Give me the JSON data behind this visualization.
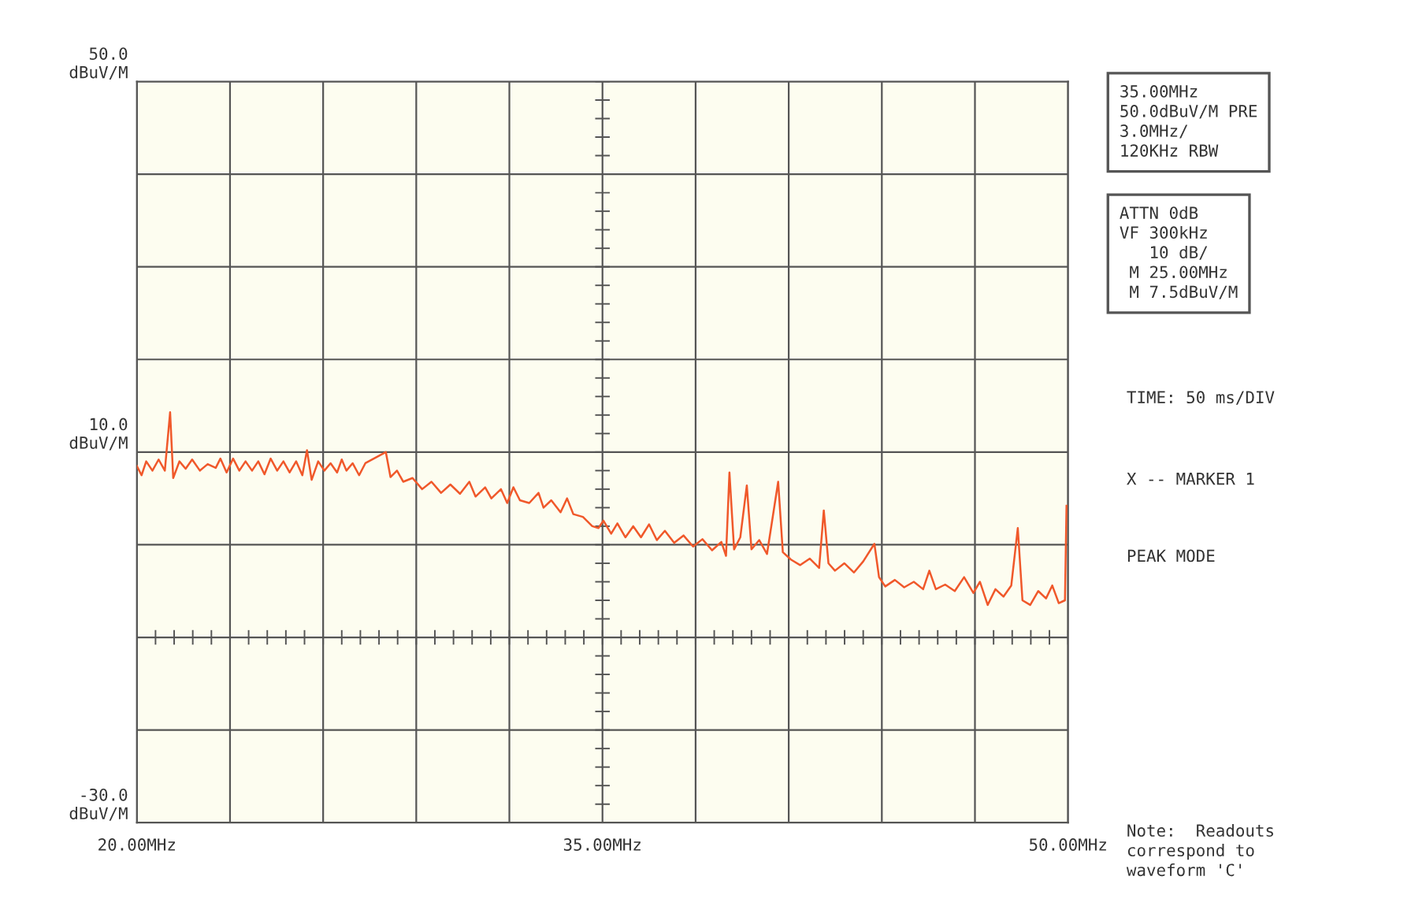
{
  "chart_data": {
    "type": "line",
    "x": [
      20.0,
      20.15,
      20.3,
      20.5,
      20.7,
      20.9,
      21.07,
      21.17,
      21.37,
      21.57,
      21.78,
      22.03,
      22.28,
      22.54,
      22.69,
      22.89,
      23.1,
      23.3,
      23.5,
      23.71,
      23.91,
      24.11,
      24.31,
      24.52,
      24.72,
      24.92,
      25.13,
      25.33,
      25.48,
      25.63,
      25.84,
      26.04,
      26.24,
      26.45,
      26.6,
      26.75,
      26.95,
      27.16,
      27.36,
      28.02,
      28.17,
      28.38,
      28.58,
      28.88,
      29.19,
      29.49,
      29.8,
      30.1,
      30.41,
      30.71,
      30.91,
      31.22,
      31.42,
      31.73,
      31.93,
      32.13,
      32.34,
      32.64,
      32.94,
      33.1,
      33.35,
      33.65,
      33.86,
      34.06,
      34.37,
      34.67,
      34.87,
      35.03,
      35.28,
      35.48,
      35.74,
      35.99,
      36.24,
      36.5,
      36.75,
      37.01,
      37.31,
      37.61,
      37.92,
      38.22,
      38.53,
      38.83,
      38.98,
      39.09,
      39.24,
      39.44,
      39.65,
      39.8,
      40.05,
      40.3,
      40.66,
      40.81,
      41.07,
      41.37,
      41.68,
      41.98,
      42.13,
      42.28,
      42.49,
      42.79,
      43.1,
      43.4,
      43.76,
      43.91,
      44.11,
      44.42,
      44.72,
      45.03,
      45.33,
      45.53,
      45.74,
      46.04,
      46.35,
      46.65,
      46.95,
      47.16,
      47.41,
      47.66,
      47.92,
      48.17,
      48.38,
      48.53,
      48.78,
      49.04,
      49.29,
      49.49,
      49.7,
      49.9,
      49.95
    ],
    "series": [
      {
        "color": "#f0582a",
        "values": [
          8.5,
          7.5,
          9.0,
          8.0,
          9.2,
          8.0,
          14.3,
          7.2,
          9.0,
          8.2,
          9.2,
          8.0,
          8.7,
          8.3,
          9.3,
          7.8,
          9.3,
          8.0,
          9.0,
          8.0,
          9.0,
          7.6,
          9.3,
          8.0,
          9.0,
          7.8,
          9.0,
          7.5,
          10.2,
          7.0,
          9.0,
          8.0,
          8.8,
          7.8,
          9.2,
          8.0,
          8.8,
          7.5,
          8.8,
          10.0,
          7.3,
          8.0,
          6.8,
          7.2,
          6.0,
          6.8,
          5.6,
          6.5,
          5.5,
          6.8,
          5.2,
          6.2,
          5.0,
          6.0,
          4.5,
          6.2,
          4.8,
          4.5,
          5.6,
          4.0,
          4.8,
          3.5,
          5.0,
          3.3,
          3.0,
          2.0,
          1.8,
          2.6,
          1.2,
          2.3,
          0.8,
          2.0,
          0.8,
          2.2,
          0.5,
          1.5,
          0.2,
          1.0,
          -0.2,
          0.6,
          -0.6,
          0.3,
          -1.2,
          7.8,
          -0.5,
          0.8,
          6.4,
          -0.5,
          0.5,
          -1.0,
          6.8,
          -0.8,
          -1.6,
          -2.2,
          -1.5,
          -2.5,
          3.7,
          -2.0,
          -2.8,
          -2.0,
          -3.0,
          -1.8,
          0.1,
          -3.5,
          -4.5,
          -3.8,
          -4.6,
          -4.0,
          -4.8,
          -2.8,
          -4.8,
          -4.3,
          -5.0,
          -3.5,
          -5.2,
          -4.0,
          -6.5,
          -4.8,
          -5.6,
          -4.4,
          1.8,
          -6.0,
          -6.5,
          -5.0,
          -5.8,
          -4.4,
          -6.3,
          -6.0,
          4.2
        ]
      }
    ],
    "xlim": [
      20,
      50
    ],
    "ylim": [
      -30,
      50
    ],
    "xticks": [
      {
        "value": 20,
        "label": "20.00MHz"
      },
      {
        "value": 23,
        "label": null
      },
      {
        "value": 26,
        "label": null
      },
      {
        "value": 29,
        "label": null
      },
      {
        "value": 32,
        "label": null
      },
      {
        "value": 35,
        "label": "35.00MHz"
      },
      {
        "value": 38,
        "label": null
      },
      {
        "value": 41,
        "label": null
      },
      {
        "value": 44,
        "label": null
      },
      {
        "value": 47,
        "label": null
      },
      {
        "value": 50,
        "label": "50.00MHz"
      }
    ],
    "yticks": [
      {
        "value": -30,
        "label": "-30.0\ndBuV/M"
      },
      {
        "value": -20,
        "label": null
      },
      {
        "value": -10,
        "label": null
      },
      {
        "value": 0,
        "label": null
      },
      {
        "value": 10,
        "label": "10.0\ndBuV/M"
      },
      {
        "value": 20,
        "label": null
      },
      {
        "value": 30,
        "label": null
      },
      {
        "value": 40,
        "label": null
      },
      {
        "value": 50,
        "label": "50.0\ndBuV/M"
      }
    ],
    "grid": true,
    "marker": "none",
    "line_style": "solid",
    "annotations": [
      "35.00MHz\n50.0dBuV/M PRE\n3.0MHz/\n120KHz RBW",
      "ATTN 0dB\nVF 300kHz\n   10 dB/\n M 25.00MHz\n M 7.5dBuV/M",
      "TIME: 50 ms/DIV",
      "X -- MARKER 1",
      "PEAK MODE",
      "Note:  Readouts\ncorrespond to\nwaveform 'C'"
    ]
  }
}
